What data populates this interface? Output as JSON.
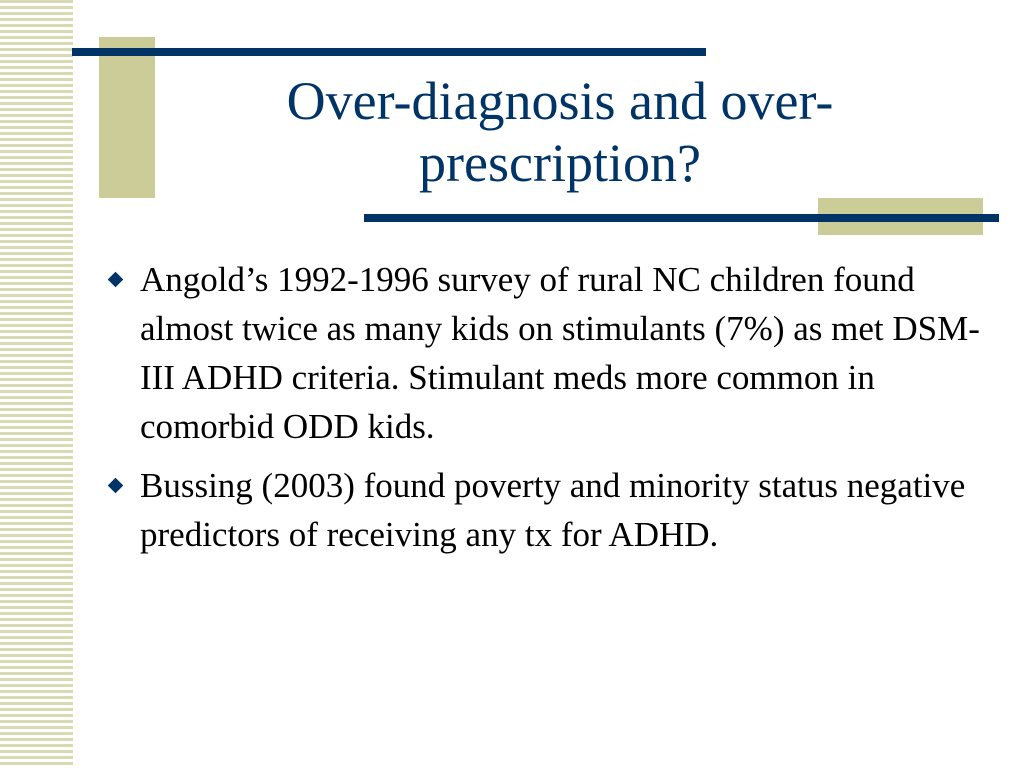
{
  "slide": {
    "title": "Over-diagnosis and over-prescription?",
    "bullets": [
      {
        "text": "Angold’s 1992-1996 survey of rural NC children found almost twice as many kids on stimulants (7%) as met DSM-III ADHD criteria. Stimulant meds more common in comorbid ODD kids.",
        "icon": "diamond-bullet-icon"
      },
      {
        "text": "Bussing (2003) found poverty and minority status negative predictors of receiving any tx for ADHD.",
        "icon": "diamond-bullet-icon"
      }
    ]
  },
  "colors": {
    "title": "#003366",
    "accent_line": "#003366",
    "accent_block": "#cccc99",
    "stripe": "#d9d9b3",
    "body_text": "#000000"
  }
}
